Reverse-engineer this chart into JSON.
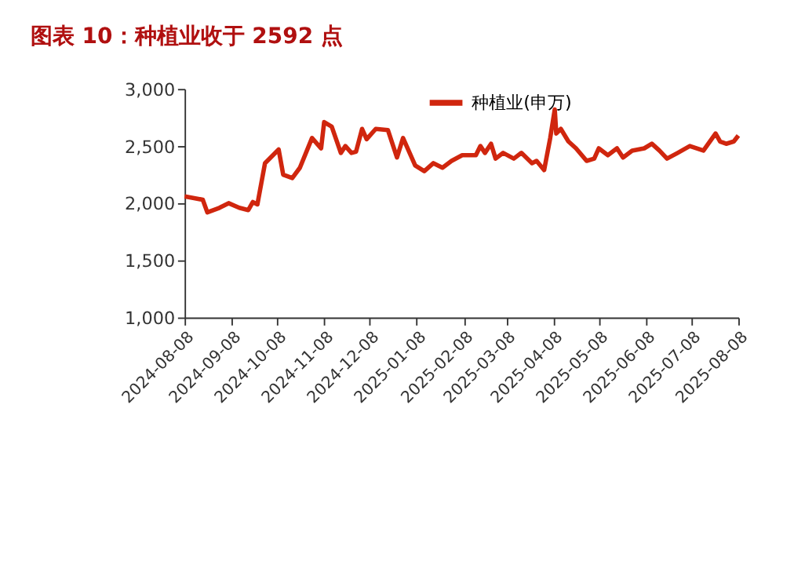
{
  "chart_data": {
    "type": "line",
    "title": "图表 10：种植业收于 2592 点",
    "x": [
      "2024-08-08",
      "2024-08-20",
      "2024-08-23",
      "2024-08-31",
      "2024-09-06",
      "2024-09-13",
      "2024-09-19",
      "2024-09-22",
      "2024-09-25",
      "2024-09-30",
      "2024-10-09",
      "2024-10-12",
      "2024-10-18",
      "2024-10-23",
      "2024-10-31",
      "2024-11-06",
      "2024-11-08",
      "2024-11-13",
      "2024-11-19",
      "2024-11-22",
      "2024-11-26",
      "2024-11-29",
      "2024-12-03",
      "2024-12-06",
      "2024-12-12",
      "2024-12-20",
      "2024-12-26",
      "2024-12-30",
      "2025-01-07",
      "2025-01-13",
      "2025-01-19",
      "2025-01-25",
      "2025-01-31",
      "2025-02-07",
      "2025-02-16",
      "2025-02-19",
      "2025-02-22",
      "2025-02-26",
      "2025-03-01",
      "2025-03-06",
      "2025-03-13",
      "2025-03-18",
      "2025-03-25",
      "2025-03-28",
      "2025-04-02",
      "2025-04-06",
      "2025-04-09",
      "2025-04-10",
      "2025-04-13",
      "2025-04-18",
      "2025-04-23",
      "2025-04-30",
      "2025-05-05",
      "2025-05-08",
      "2025-05-14",
      "2025-05-20",
      "2025-05-24",
      "2025-05-30",
      "2025-06-07",
      "2025-06-12",
      "2025-06-17",
      "2025-06-22",
      "2025-06-29",
      "2025-07-07",
      "2025-07-16",
      "2025-07-24",
      "2025-07-27",
      "2025-07-31",
      "2025-08-05",
      "2025-08-08"
    ],
    "series": [
      {
        "name": "种植业(申万)",
        "color": "#d0260e",
        "values": [
          2060,
          2030,
          1920,
          1960,
          2000,
          1960,
          1940,
          2010,
          1990,
          2350,
          2470,
          2250,
          2220,
          2310,
          2570,
          2480,
          2710,
          2670,
          2440,
          2500,
          2440,
          2450,
          2650,
          2560,
          2650,
          2640,
          2400,
          2570,
          2330,
          2280,
          2350,
          2310,
          2370,
          2420,
          2420,
          2500,
          2440,
          2520,
          2390,
          2440,
          2390,
          2440,
          2350,
          2370,
          2290,
          2570,
          2820,
          2610,
          2650,
          2540,
          2480,
          2370,
          2390,
          2480,
          2420,
          2480,
          2400,
          2460,
          2480,
          2520,
          2460,
          2390,
          2440,
          2500,
          2460,
          2610,
          2540,
          2520,
          2540,
          2592
        ]
      }
    ],
    "xlim": [
      "2024-08-08",
      "2025-08-08"
    ],
    "xticks": [
      "2024-08-08",
      "2024-09-08",
      "2024-10-08",
      "2024-11-08",
      "2024-12-08",
      "2025-01-08",
      "2025-02-08",
      "2025-03-08",
      "2025-04-08",
      "2025-05-08",
      "2025-06-08",
      "2025-07-08",
      "2025-08-08"
    ],
    "ylim": [
      1000,
      3000
    ],
    "yticks": [
      {
        "value": 1000,
        "label": "1,000"
      },
      {
        "value": 1500,
        "label": "1,500"
      },
      {
        "value": 2000,
        "label": "2,000"
      },
      {
        "value": 2500,
        "label": "2,500"
      },
      {
        "value": 3000,
        "label": "3,000"
      }
    ],
    "grid": false,
    "legend": "top",
    "marker": "none",
    "line_style": "solid"
  }
}
